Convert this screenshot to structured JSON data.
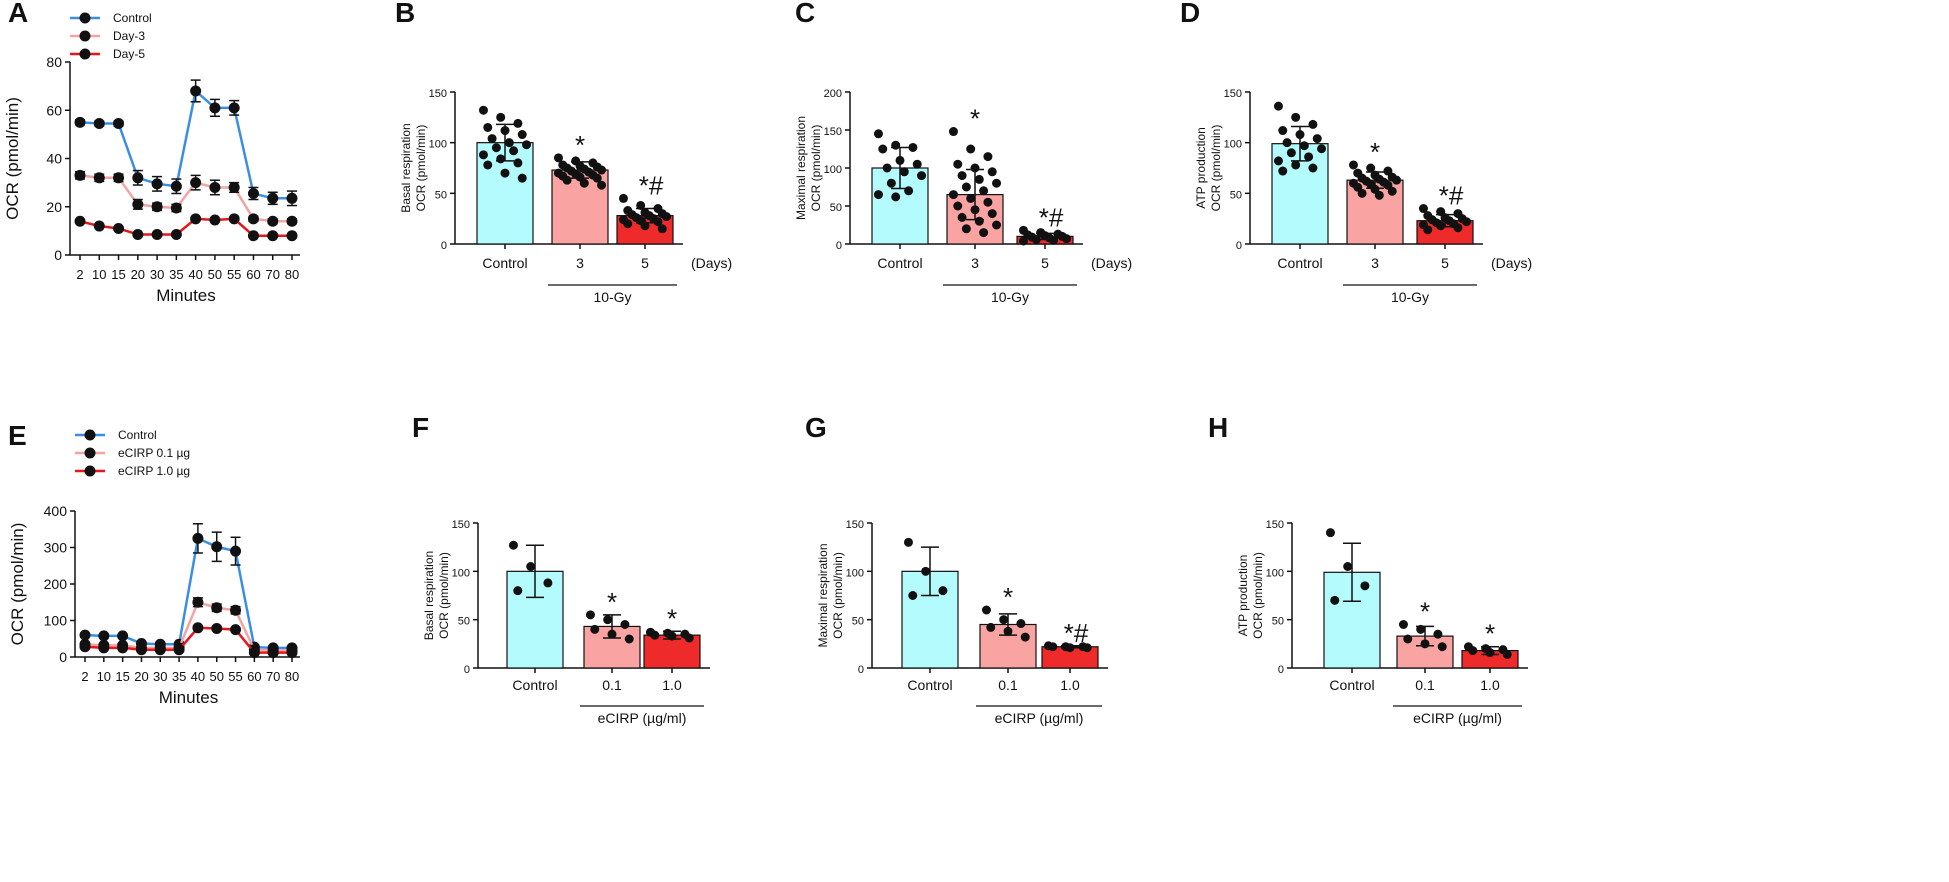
{
  "chart_data": [
    {
      "panel": "A",
      "type": "line",
      "ylabel": "OCR (pmol/min)",
      "xlabel": "Minutes",
      "ylim": [
        0,
        80
      ],
      "yticks": [
        0,
        20,
        40,
        60,
        80
      ],
      "x": [
        2,
        10,
        15,
        20,
        30,
        35,
        40,
        50,
        55,
        60,
        70,
        80
      ],
      "series": [
        {
          "name": "Control",
          "color": "#3a8ee6",
          "values": [
            55,
            54.5,
            54.5,
            32,
            29.5,
            28.5,
            68,
            61,
            61,
            25.5,
            23.5,
            23.5
          ],
          "err": [
            1,
            1,
            1,
            3,
            3,
            3,
            4.5,
            3.5,
            3,
            2.5,
            2.5,
            3
          ]
        },
        {
          "name": "Day-3",
          "color": "#f4a3a3",
          "values": [
            33,
            32,
            32,
            21,
            20,
            19.5,
            30,
            28,
            28,
            15,
            14,
            14
          ],
          "err": [
            1.5,
            1.5,
            1.5,
            2,
            1.5,
            1.5,
            3,
            3,
            2,
            1,
            1,
            1
          ]
        },
        {
          "name": "Day-5",
          "color": "#e8151b",
          "values": [
            14,
            12,
            11,
            8.5,
            8.5,
            8.5,
            15,
            14.5,
            15,
            8,
            8,
            8
          ],
          "err": [
            0.5,
            0.5,
            0.5,
            0.5,
            0.5,
            0.5,
            0.5,
            0.5,
            0.5,
            0.5,
            0.5,
            0.5
          ]
        }
      ]
    },
    {
      "panel": "B",
      "type": "bar",
      "ylabel": [
        "Basal respiration",
        "OCR (pmol/min)"
      ],
      "ylim": [
        0,
        150
      ],
      "yticks": [
        0,
        50,
        100,
        150
      ],
      "categories": [
        "Control",
        "3",
        "5"
      ],
      "unit_label": "(Days)",
      "group_label": "10-Gy",
      "colors": [
        "#b3fbfd",
        "#f9a3a3",
        "#ee2a2a"
      ],
      "values": [
        100,
        73,
        28
      ],
      "err": [
        18,
        8,
        7
      ],
      "annotations": [
        "",
        "*",
        "*#"
      ],
      "points": [
        [
          132,
          125,
          119,
          115,
          112,
          108,
          104,
          100,
          98,
          95,
          92,
          88,
          84,
          80,
          78,
          70,
          65
        ],
        [
          85,
          82,
          80,
          78,
          77,
          76,
          75,
          74,
          73,
          72,
          71,
          70,
          69,
          68,
          67,
          66,
          65,
          63,
          60,
          58
        ],
        [
          45,
          38,
          35,
          33,
          31,
          30,
          29,
          28,
          27,
          26,
          25,
          24,
          23,
          22,
          20,
          18,
          15
        ]
      ]
    },
    {
      "panel": "C",
      "type": "bar",
      "ylabel": [
        "Maximal respiration",
        "OCR (pmol/min)"
      ],
      "ylim": [
        0,
        200
      ],
      "yticks": [
        0,
        50,
        100,
        150,
        200
      ],
      "categories": [
        "Control",
        "3",
        "5"
      ],
      "unit_label": "(Days)",
      "group_label": "10-Gy",
      "colors": [
        "#b3fbfd",
        "#f9a3a3",
        "#ee2a2a"
      ],
      "values": [
        100,
        65,
        10
      ],
      "err": [
        27,
        33,
        4
      ],
      "annotations": [
        "",
        "*",
        "*#"
      ],
      "points": [
        [
          145,
          130,
          127,
          125,
          110,
          105,
          100,
          95,
          90,
          80,
          70,
          65,
          62
        ],
        [
          148,
          125,
          115,
          105,
          100,
          95,
          90,
          85,
          80,
          75,
          70,
          65,
          60,
          55,
          50,
          45,
          40,
          35,
          30,
          25,
          20,
          15
        ],
        [
          18,
          15,
          13,
          12,
          11,
          10,
          9,
          8,
          7,
          6,
          5,
          4
        ]
      ]
    },
    {
      "panel": "D",
      "type": "bar",
      "ylabel": [
        "ATP production",
        "OCR (pmol/min)"
      ],
      "ylim": [
        0,
        150
      ],
      "yticks": [
        0,
        50,
        100,
        150
      ],
      "categories": [
        "Control",
        "3",
        "5"
      ],
      "unit_label": "(Days)",
      "group_label": "10-Gy",
      "colors": [
        "#b3fbfd",
        "#f9a3a3",
        "#ee2a2a"
      ],
      "values": [
        99,
        63,
        23
      ],
      "err": [
        17,
        8,
        6
      ],
      "annotations": [
        "",
        "*",
        "*#"
      ],
      "points": [
        [
          136,
          125,
          118,
          112,
          108,
          104,
          100,
          97,
          94,
          90,
          86,
          82,
          78,
          75,
          72
        ],
        [
          78,
          75,
          72,
          70,
          68,
          66,
          65,
          64,
          63,
          62,
          61,
          60,
          59,
          58,
          56,
          54,
          52,
          50,
          48
        ],
        [
          35,
          32,
          30,
          28,
          26,
          25,
          24,
          23,
          22,
          21,
          20,
          19,
          18,
          16,
          14
        ]
      ]
    },
    {
      "panel": "E",
      "type": "line",
      "ylabel": "OCR (pmol/min)",
      "xlabel": "Minutes",
      "ylim": [
        0,
        400
      ],
      "yticks": [
        0,
        100,
        200,
        300,
        400
      ],
      "x": [
        2,
        10,
        15,
        20,
        30,
        35,
        40,
        50,
        55,
        60,
        70,
        80
      ],
      "series": [
        {
          "name": "Control",
          "color": "#3a8ee6",
          "values": [
            60,
            58,
            58,
            37,
            35,
            35,
            325,
            302,
            290,
            27,
            25,
            25
          ],
          "err": [
            5,
            5,
            5,
            4,
            4,
            4,
            40,
            40,
            38,
            4,
            4,
            4
          ]
        },
        {
          "name": "eCIRP 0.1 µg",
          "color": "#f4a3a3",
          "values": [
            35,
            32,
            32,
            25,
            25,
            25,
            150,
            135,
            128,
            20,
            18,
            18
          ],
          "err": [
            4,
            4,
            4,
            3,
            3,
            3,
            12,
            10,
            10,
            3,
            3,
            3
          ]
        },
        {
          "name": "eCIRP 1.0 µg",
          "color": "#e8151b",
          "values": [
            28,
            25,
            25,
            20,
            20,
            20,
            80,
            78,
            75,
            12,
            12,
            12
          ],
          "err": [
            3,
            3,
            3,
            3,
            3,
            3,
            5,
            5,
            5,
            3,
            3,
            3
          ]
        }
      ]
    },
    {
      "panel": "F",
      "type": "bar",
      "ylabel": [
        "Basal respiration",
        "OCR (pmol/min)"
      ],
      "ylim": [
        0,
        150
      ],
      "yticks": [
        0,
        50,
        100,
        150
      ],
      "categories": [
        "Control",
        "0.1",
        "1.0"
      ],
      "group_label": "eCIRP (µg/ml)",
      "colors": [
        "#b3fbfd",
        "#f9a3a3",
        "#ee2a2a"
      ],
      "values": [
        100,
        43,
        34
      ],
      "err": [
        27,
        12,
        4
      ],
      "annotations": [
        "",
        "*",
        "*"
      ],
      "points": [
        [
          127,
          105,
          88,
          80
        ],
        [
          55,
          50,
          45,
          40,
          35,
          30
        ],
        [
          37,
          36,
          35,
          34,
          33,
          31
        ]
      ]
    },
    {
      "panel": "G",
      "type": "bar",
      "ylabel": [
        "Maximal respiration",
        "OCR (pmol/min)"
      ],
      "ylim": [
        0,
        150
      ],
      "yticks": [
        0,
        50,
        100,
        150
      ],
      "categories": [
        "Control",
        "0.1",
        "1.0"
      ],
      "group_label": "eCIRP (µg/ml)",
      "colors": [
        "#b3fbfd",
        "#f9a3a3",
        "#ee2a2a"
      ],
      "values": [
        100,
        45,
        22
      ],
      "err": [
        25,
        11,
        1
      ],
      "annotations": [
        "",
        "*",
        "*#"
      ],
      "points": [
        [
          130,
          100,
          80,
          75
        ],
        [
          60,
          50,
          46,
          42,
          38,
          32
        ],
        [
          23,
          22,
          22,
          22,
          21,
          21
        ]
      ]
    },
    {
      "panel": "H",
      "type": "bar",
      "ylabel": [
        "ATP production",
        "OCR (pmol/min)"
      ],
      "ylim": [
        0,
        150
      ],
      "yticks": [
        0,
        50,
        100,
        150
      ],
      "categories": [
        "Control",
        "0.1",
        "1.0"
      ],
      "group_label": "eCIRP (µg/ml)",
      "colors": [
        "#b3fbfd",
        "#f9a3a3",
        "#ee2a2a"
      ],
      "values": [
        99,
        33,
        18
      ],
      "err": [
        30,
        10,
        4
      ],
      "annotations": [
        "",
        "*",
        "*"
      ],
      "points": [
        [
          140,
          105,
          85,
          70
        ],
        [
          45,
          40,
          35,
          30,
          25,
          22
        ],
        [
          22,
          20,
          19,
          18,
          16,
          14
        ]
      ]
    }
  ]
}
